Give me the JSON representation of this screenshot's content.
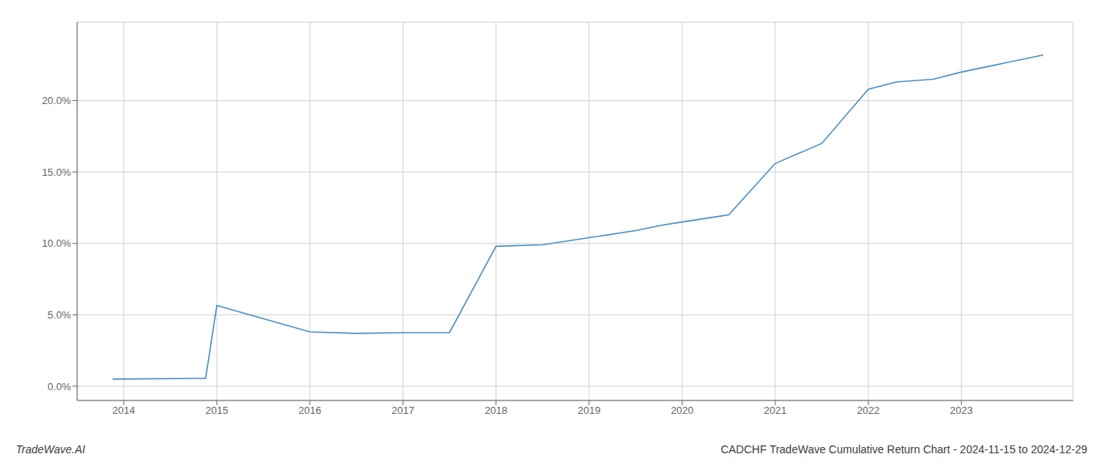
{
  "chart_data": {
    "type": "line",
    "title": "CADCHF TradeWave Cumulative Return Chart - 2024-11-15 to 2024-12-29",
    "annotations": [
      "TradeWave.AI"
    ],
    "x": [
      2013.88,
      2014.88,
      2015.0,
      2016.0,
      2016.5,
      2017.0,
      2017.5,
      2018.0,
      2018.5,
      2019.0,
      2019.5,
      2019.8,
      2020.0,
      2020.3,
      2020.5,
      2021.0,
      2021.5,
      2022.0,
      2022.3,
      2022.7,
      2023.0,
      2023.88
    ],
    "values": [
      0.5,
      0.55,
      5.65,
      3.8,
      3.7,
      3.75,
      3.75,
      9.8,
      9.9,
      10.4,
      10.9,
      11.3,
      11.5,
      11.8,
      12.0,
      15.6,
      17.0,
      20.8,
      21.3,
      21.5,
      22.0,
      23.2
    ],
    "color": "#4a90c4",
    "xlim": [
      2013.5,
      2024.2
    ],
    "xticks": [
      2014,
      2015,
      2016,
      2017,
      2018,
      2019,
      2020,
      2021,
      2022,
      2023
    ],
    "ylim": [
      -1.0,
      25.5
    ],
    "yticks": [
      {
        "value": 0.0,
        "label": "0.0%"
      },
      {
        "value": 5.0,
        "label": "5.0%"
      },
      {
        "value": 10.0,
        "label": "10.0%"
      },
      {
        "value": 15.0,
        "label": "15.0%"
      },
      {
        "value": 20.0,
        "label": "20.0%"
      }
    ],
    "grid": true
  }
}
